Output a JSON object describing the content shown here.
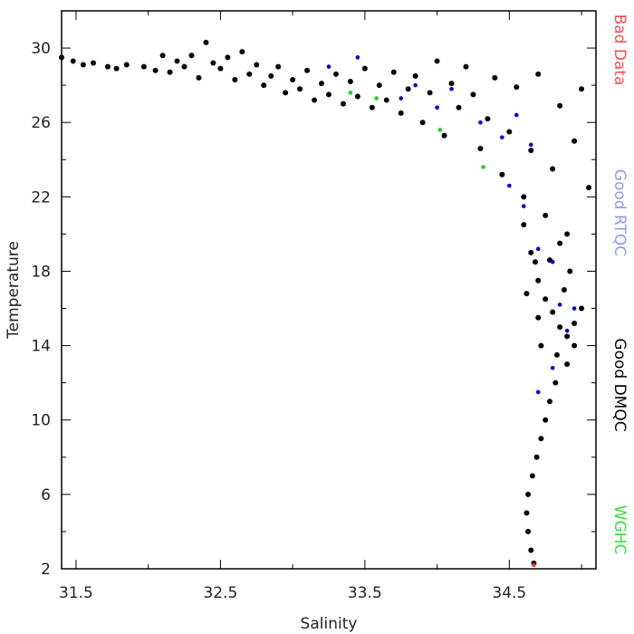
{
  "chart_data": {
    "type": "scatter",
    "xlabel": "Salinity",
    "ylabel": "Temperature",
    "xlim": [
      31.4,
      35.1
    ],
    "ylim": [
      2,
      32
    ],
    "x_ticks": [
      31.5,
      32.5,
      33.5,
      34.5
    ],
    "x_tick_labels": [
      "31.5",
      "32.5",
      "33.5",
      "34.5"
    ],
    "y_ticks": [
      2,
      6,
      10,
      14,
      18,
      22,
      26,
      30
    ],
    "y_tick_labels": [
      "2",
      "6",
      "10",
      "14",
      "18",
      "22",
      "26",
      "30"
    ],
    "grid": false,
    "legend_position": "right",
    "legend": [
      {
        "label": "Bad Data",
        "color": "#ff4d4d"
      },
      {
        "label": "Good RTQC",
        "color": "#8a9bff"
      },
      {
        "label": "Good DMQC",
        "color": "#000000"
      },
      {
        "label": "WGHC",
        "color": "#33e033"
      }
    ],
    "series": [
      {
        "name": "Good DMQC",
        "color": "#000000",
        "points": [
          [
            31.4,
            29.5
          ],
          [
            31.48,
            29.3
          ],
          [
            31.55,
            29.1
          ],
          [
            31.62,
            29.2
          ],
          [
            31.72,
            29.0
          ],
          [
            31.78,
            28.9
          ],
          [
            31.85,
            29.1
          ],
          [
            31.97,
            29.0
          ],
          [
            32.05,
            28.8
          ],
          [
            32.1,
            29.6
          ],
          [
            32.15,
            28.7
          ],
          [
            32.2,
            29.3
          ],
          [
            32.25,
            29.0
          ],
          [
            32.3,
            29.6
          ],
          [
            32.35,
            28.4
          ],
          [
            32.4,
            30.3
          ],
          [
            32.45,
            29.2
          ],
          [
            32.5,
            28.9
          ],
          [
            32.55,
            29.5
          ],
          [
            32.6,
            28.3
          ],
          [
            32.65,
            29.8
          ],
          [
            32.7,
            28.6
          ],
          [
            32.75,
            29.1
          ],
          [
            32.8,
            28.0
          ],
          [
            32.85,
            28.5
          ],
          [
            32.9,
            29.0
          ],
          [
            32.95,
            27.6
          ],
          [
            33.0,
            28.3
          ],
          [
            33.05,
            27.8
          ],
          [
            33.1,
            28.8
          ],
          [
            33.15,
            27.2
          ],
          [
            33.2,
            28.1
          ],
          [
            33.25,
            27.5
          ],
          [
            33.3,
            28.6
          ],
          [
            33.35,
            27.0
          ],
          [
            33.4,
            28.2
          ],
          [
            33.45,
            27.4
          ],
          [
            33.5,
            28.9
          ],
          [
            33.55,
            26.8
          ],
          [
            33.6,
            28.0
          ],
          [
            33.65,
            27.2
          ],
          [
            33.7,
            28.7
          ],
          [
            33.75,
            26.5
          ],
          [
            33.8,
            27.8
          ],
          [
            33.85,
            28.5
          ],
          [
            33.9,
            26.0
          ],
          [
            33.95,
            27.6
          ],
          [
            34.0,
            29.3
          ],
          [
            34.05,
            25.3
          ],
          [
            34.1,
            28.1
          ],
          [
            34.15,
            26.8
          ],
          [
            34.2,
            29.0
          ],
          [
            34.25,
            27.5
          ],
          [
            34.3,
            24.6
          ],
          [
            34.35,
            26.2
          ],
          [
            34.4,
            28.4
          ],
          [
            34.45,
            23.2
          ],
          [
            34.5,
            25.5
          ],
          [
            34.55,
            27.9
          ],
          [
            34.6,
            22.0
          ],
          [
            34.65,
            24.5
          ],
          [
            34.7,
            28.6
          ],
          [
            34.75,
            21.0
          ],
          [
            34.8,
            23.5
          ],
          [
            34.85,
            26.9
          ],
          [
            34.9,
            20.0
          ],
          [
            34.95,
            25.0
          ],
          [
            35.0,
            27.8
          ],
          [
            35.05,
            22.5
          ],
          [
            34.6,
            20.5
          ],
          [
            34.65,
            19.0
          ],
          [
            34.7,
            17.5
          ],
          [
            34.75,
            16.5
          ],
          [
            34.8,
            15.8
          ],
          [
            34.85,
            15.0
          ],
          [
            34.9,
            14.5
          ],
          [
            34.95,
            15.2
          ],
          [
            35.0,
            16.0
          ],
          [
            34.88,
            17.0
          ],
          [
            34.92,
            18.0
          ],
          [
            34.78,
            18.6
          ],
          [
            34.72,
            14.0
          ],
          [
            34.83,
            13.5
          ],
          [
            34.9,
            13.0
          ],
          [
            34.95,
            14.0
          ],
          [
            34.7,
            15.5
          ],
          [
            34.62,
            16.8
          ],
          [
            34.68,
            18.5
          ],
          [
            34.85,
            19.5
          ],
          [
            34.82,
            12.0
          ],
          [
            34.78,
            11.0
          ],
          [
            34.75,
            10.0
          ],
          [
            34.72,
            9.0
          ],
          [
            34.69,
            8.0
          ],
          [
            34.66,
            7.0
          ],
          [
            34.63,
            6.0
          ],
          [
            34.62,
            5.0
          ],
          [
            34.63,
            4.0
          ],
          [
            34.65,
            3.0
          ],
          [
            34.67,
            2.3
          ]
        ]
      },
      {
        "name": "Good RTQC",
        "color": "#0000dd",
        "points": [
          [
            33.25,
            29.0
          ],
          [
            33.45,
            29.5
          ],
          [
            33.75,
            27.3
          ],
          [
            33.85,
            28.0
          ],
          [
            34.0,
            26.8
          ],
          [
            34.1,
            27.8
          ],
          [
            34.3,
            26.0
          ],
          [
            34.45,
            25.2
          ],
          [
            34.5,
            22.6
          ],
          [
            34.6,
            21.5
          ],
          [
            34.7,
            19.2
          ],
          [
            34.8,
            18.5
          ],
          [
            34.85,
            16.2
          ],
          [
            34.9,
            14.8
          ],
          [
            34.8,
            12.8
          ],
          [
            34.7,
            11.5
          ],
          [
            34.55,
            26.4
          ],
          [
            34.65,
            24.8
          ],
          [
            34.95,
            16.0
          ]
        ]
      },
      {
        "name": "WGHC",
        "color": "#22cc22",
        "points": [
          [
            33.4,
            27.6
          ],
          [
            33.58,
            27.3
          ],
          [
            34.02,
            25.6
          ],
          [
            34.32,
            23.6
          ]
        ]
      },
      {
        "name": "Bad Data",
        "color": "#ee3333",
        "points": [
          [
            34.67,
            2.2
          ]
        ]
      }
    ]
  }
}
